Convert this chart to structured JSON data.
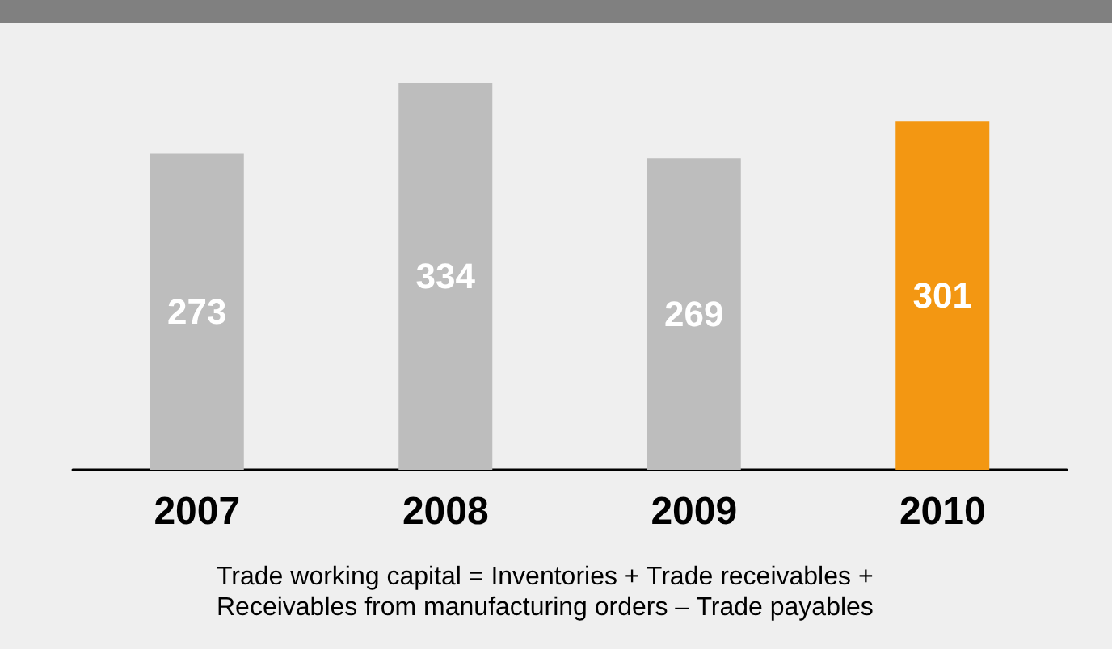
{
  "chart_data": {
    "type": "bar",
    "categories": [
      "2007",
      "2008",
      "2009",
      "2010"
    ],
    "values": [
      273,
      334,
      269,
      301
    ],
    "colors": [
      "#bdbdbd",
      "#bdbdbd",
      "#bdbdbd",
      "#f39712"
    ],
    "data_labels": true,
    "annotations": [
      "Trade working capital = Inventories + Trade receivables + Receivables from manufacturing orders – Trade payables"
    ]
  }
}
